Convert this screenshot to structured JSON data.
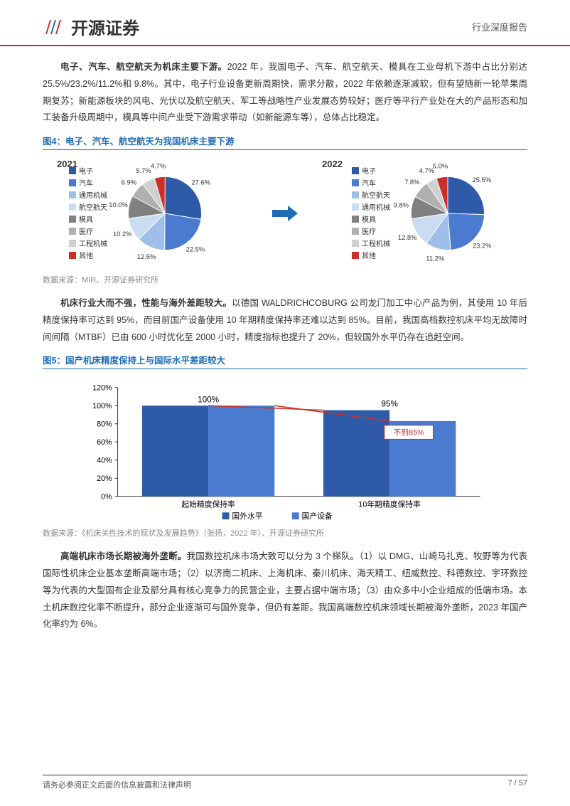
{
  "header": {
    "logo_text": "开源证券",
    "category": "行业深度报告"
  },
  "para1": {
    "lead": "电子、汽车、航空航天为机床主要下游。",
    "body": "2022 年，我国电子、汽车、航空航天、模具在工业母机下游中占比分别达 25.5%/23.2%/11.2%和 9.8%。其中，电子行业设备更新周期快，需求分散，2022 年依赖逐渐减软，但有望随新一轮苹果周期复苏；新能源板块的风电、光伏以及航空航天、军工等战略性产业发展态势较好；医疗等平行产业处在大的产品形态和加工装备升级周期中，模具等中间产业受下游需求带动（如新能源车等），总体占比稳定。"
  },
  "fig4": {
    "title": "图4：电子、汽车、航空航天为我国机床主要下游",
    "source": "数据来源：MIR、开源证券研究所",
    "year_2021": "2021",
    "year_2022": "2022",
    "legend_2021": [
      "电子",
      "汽车",
      "通用机械",
      "航空航天",
      "模具",
      "医疗",
      "工程机械",
      "其他"
    ],
    "legend_2022": [
      "电子",
      "汽车",
      "航空航天",
      "通用机械",
      "模具",
      "医疗",
      "工程机械",
      "其他"
    ],
    "pie_2021": {
      "slices": [
        {
          "label": "27.6%",
          "value": 27.6,
          "color": "#2f5aa8"
        },
        {
          "label": "22.5%",
          "value": 22.5,
          "color": "#4a7bd0"
        },
        {
          "label": "12.5%",
          "value": 12.5,
          "color": "#9ec0e8"
        },
        {
          "label": "10.2%",
          "value": 10.2,
          "color": "#cadcf2"
        },
        {
          "label": "10.0%",
          "value": 10.0,
          "color": "#808080"
        },
        {
          "label": "6.9%",
          "value": 6.9,
          "color": "#b0b0b0"
        },
        {
          "label": "5.7%",
          "value": 5.7,
          "color": "#d0d0d0"
        },
        {
          "label": "4.7%",
          "value": 4.7,
          "color": "#c9302c"
        }
      ]
    },
    "pie_2022": {
      "slices": [
        {
          "label": "25.5%",
          "value": 25.5,
          "color": "#2f5aa8"
        },
        {
          "label": "23.2%",
          "value": 23.2,
          "color": "#4a7bd0"
        },
        {
          "label": "11.2%",
          "value": 11.2,
          "color": "#9ec0e8"
        },
        {
          "label": "12.8%",
          "value": 12.8,
          "color": "#cadcf2"
        },
        {
          "label": "9.8%",
          "value": 9.8,
          "color": "#808080"
        },
        {
          "label": "7.8%",
          "value": 7.8,
          "color": "#b0b0b0"
        },
        {
          "label": "4.7%",
          "value": 4.7,
          "color": "#d0d0d0"
        },
        {
          "label": "5.0%",
          "value": 5.0,
          "color": "#c9302c"
        }
      ]
    },
    "legend_colors_2021": [
      "#2f5aa8",
      "#4a7bd0",
      "#9ec0e8",
      "#cadcf2",
      "#808080",
      "#b0b0b0",
      "#d0d0d0",
      "#c9302c"
    ],
    "legend_colors_2022": [
      "#2f5aa8",
      "#4a7bd0",
      "#9ec0e8",
      "#cadcf2",
      "#808080",
      "#b0b0b0",
      "#d0d0d0",
      "#c9302c"
    ]
  },
  "para2": {
    "lead": "机床行业大而不强，性能与海外差距较大。",
    "body": "以德国 WALDRICHCOBURG 公司龙门加工中心产品为例，其使用 10 年后精度保持率可达到 95%，而目前国产设备使用 10 年期精度保持率还难以达到 85%。目前，我国高档数控机床平均无故障时间间隔（MTBF）已由 600 小时优化至 2000 小时，精度指标也提升了 20%，但较国外水平仍存在追赶空间。"
  },
  "fig5": {
    "title": "图5：国产机床精度保持上与国际水平差距较大",
    "source": "数据来源：《机床关性技术的现状及发展趋势》（张扬，2022 年）、开源证券研究所",
    "categories": [
      "起始精度保持率",
      "10年期精度保持率"
    ],
    "series": [
      {
        "name": "国外水平",
        "color": "#2f5aa8",
        "values": [
          100,
          95
        ]
      },
      {
        "name": "国产设备",
        "color": "#4a7bd0",
        "values": [
          100,
          83
        ]
      }
    ],
    "value_labels": [
      "100%",
      "95%"
    ],
    "annotation": "不到85%",
    "annotation_color": "#c9302c",
    "ylim": [
      0,
      120
    ],
    "yticks": [
      "0%",
      "20%",
      "40%",
      "60%",
      "80%",
      "100%",
      "120%"
    ],
    "line_color": "#c9302c"
  },
  "para3": {
    "lead": "高端机床市场长期被海外垄断。",
    "body": "我国数控机床市场大致可以分为 3 个梯队。（1）以 DMG、山崎马扎克、牧野等为代表国际性机床企业基本垄断高端市场；（2）以济南二机床、上海机床、秦川机床、海天精工、纽威数控、科德数控、宇环数控等为代表的大型国有企业及部分具有核心竞争力的民营企业，主要占据中端市场；（3）由众多中小企业组成的低端市场。本土机床数控化率不断提升，部分企业逐渐可与国外竞争，但仍有差距。我国高端数控机床领域长期被海外垄断，2023 年国产化率约为 6%。"
  },
  "footer": {
    "left": "请务必参阅正文后面的信息披露和法律声明",
    "right": "7 / 57"
  }
}
